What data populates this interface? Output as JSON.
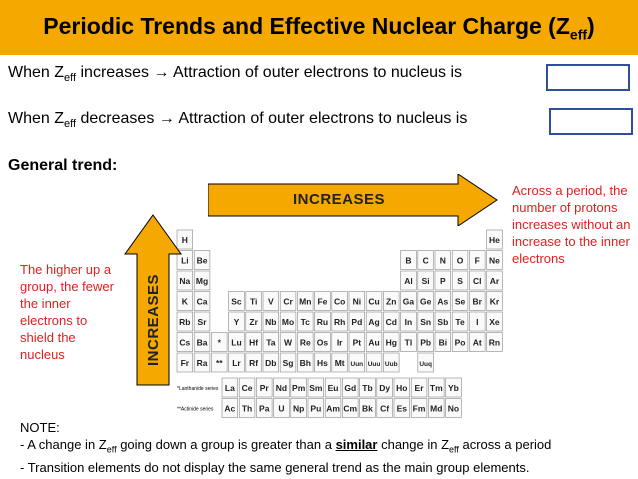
{
  "title": {
    "main": "Periodic Trends and Effective Nuclear Charge (Z",
    "sub": "eff",
    "close": ")"
  },
  "line1": {
    "prefix": "When Z",
    "sub": "eff",
    "text": " increases → Attraction of outer electrons to nucleus is"
  },
  "line2": {
    "prefix": "When Z",
    "sub": "eff",
    "text": " decreases → Attraction of outer electrons to nucleus is"
  },
  "general_trend": "General trend:",
  "arrow_horizontal_label": "INCREASES",
  "arrow_vertical_label": "INCREASES",
  "left_note": "The higher up a group, the fewer the inner electrons to shield the nucleus",
  "right_note": "Across a period, the number of protons increases without an increase to the inner electrons",
  "note": {
    "heading": "NOTE:",
    "line1_a": "- A change in Z",
    "line1_sub": "eff",
    "line1_b": " going down a group is greater than a ",
    "line1_emph": "similar",
    "line1_c": " change in Z",
    "line1_sub2": "eff",
    "line1_d": " across a period",
    "line2": "- Transition elements do not display the same general trend as the main group elements."
  },
  "periodic_table": {
    "rows": [
      [
        "H",
        "",
        "",
        "",
        "",
        "",
        "",
        "",
        "",
        "",
        "",
        "",
        "",
        "",
        "",
        "",
        "",
        "He"
      ],
      [
        "Li",
        "Be",
        "",
        "",
        "",
        "",
        "",
        "",
        "",
        "",
        "",
        "",
        "B",
        "C",
        "N",
        "O",
        "F",
        "Ne"
      ],
      [
        "Na",
        "Mg",
        "",
        "",
        "",
        "",
        "",
        "",
        "",
        "",
        "",
        "",
        "Al",
        "Si",
        "P",
        "S",
        "Cl",
        "Ar"
      ],
      [
        "K",
        "Ca",
        "Sc",
        "Ti",
        "V",
        "Cr",
        "Mn",
        "Fe",
        "Co",
        "Ni",
        "Cu",
        "Zn",
        "Ga",
        "Ge",
        "As",
        "Se",
        "Br",
        "Kr"
      ],
      [
        "Rb",
        "Sr",
        "Y",
        "Zr",
        "Nb",
        "Mo",
        "Tc",
        "Ru",
        "Rh",
        "Pd",
        "Ag",
        "Cd",
        "In",
        "Sn",
        "Sb",
        "Te",
        "I",
        "Xe"
      ],
      [
        "Cs",
        "Ba",
        "*",
        "Lu",
        "Hf",
        "Ta",
        "W",
        "Re",
        "Os",
        "Ir",
        "Pt",
        "Au",
        "Hg",
        "Tl",
        "Pb",
        "Bi",
        "Po",
        "At",
        "Rn"
      ],
      [
        "Fr",
        "Ra",
        "**",
        "Lr",
        "Rf",
        "Db",
        "Sg",
        "Bh",
        "Hs",
        "Mt",
        "Uun",
        "Uuu",
        "Uub",
        "",
        "Uuq"
      ]
    ],
    "lanthanides_label": "*Lanthanide series",
    "actinides_label": "**Actinide series",
    "lanthanides": [
      "La",
      "Ce",
      "Pr",
      "Nd",
      "Pm",
      "Sm",
      "Eu",
      "Gd",
      "Tb",
      "Dy",
      "Ho",
      "Er",
      "Tm",
      "Yb"
    ],
    "actinides": [
      "Ac",
      "Th",
      "Pa",
      "U",
      "Np",
      "Pu",
      "Am",
      "Cm",
      "Bk",
      "Cf",
      "Es",
      "Fm",
      "Md",
      "No"
    ]
  },
  "colors": {
    "title_bg": "#f5a800",
    "note_red": "#e02020",
    "arrow_fill": "#f5a800",
    "box_border": "#2f4f9a"
  }
}
